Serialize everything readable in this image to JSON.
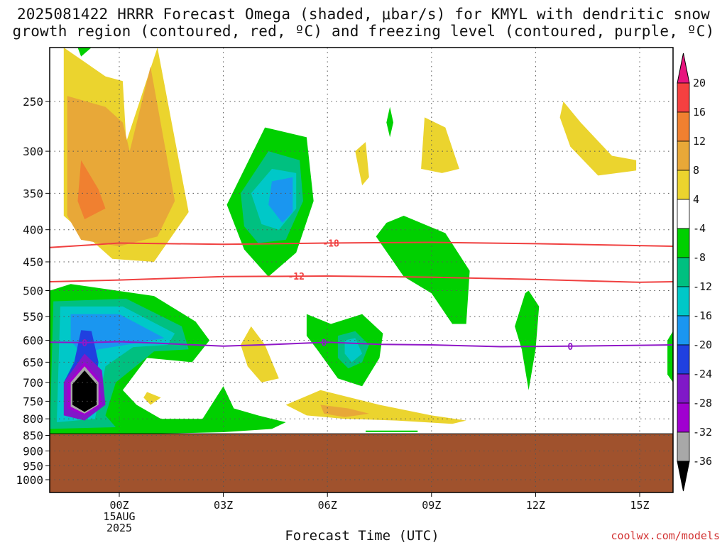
{
  "title_line1": "2025081422 HRRR Forecast Omega (shaded, μbar/s) for KMYL with dendritic snow",
  "title_line2": "growth region (contoured, red, ºC) and freezing level (contoured, purple, ºC)",
  "xlabel": "Forecast Time (UTC)",
  "credit": "coolwx.com/models",
  "chart_data": {
    "type": "heatmap",
    "title": "2025081422 HRRR Forecast Omega (shaded, μbar/s) for KMYL with dendritic snow growth region (contoured, red, ºC) and freezing level (contoured, purple, ºC)",
    "xlabel": "Forecast Time (UTC)",
    "ylabel": "",
    "x_ticks": [
      {
        "hour": 0,
        "label": "00Z",
        "date": "15AUG",
        "year": "2025"
      },
      {
        "hour": 3,
        "label": "03Z"
      },
      {
        "hour": 6,
        "label": "06Z"
      },
      {
        "hour": 9,
        "label": "09Z"
      },
      {
        "hour": 12,
        "label": "12Z"
      },
      {
        "hour": 15,
        "label": "15Z"
      }
    ],
    "xlim": [
      -2,
      16
    ],
    "y_ticks": [
      250,
      300,
      350,
      400,
      450,
      500,
      550,
      600,
      650,
      700,
      750,
      800,
      850,
      900,
      950,
      1000
    ],
    "ylim": [
      1000,
      200
    ],
    "ground_pressure": 845,
    "ground_color": "#a0522d",
    "grid": true,
    "colorbar": {
      "levels": [
        20,
        16,
        12,
        8,
        4,
        -4,
        -8,
        -12,
        -16,
        -20,
        -24,
        -28,
        -32,
        -36
      ],
      "colors": [
        "#e8147e",
        "#f54040",
        "#f08030",
        "#e8a838",
        "#ebd42e",
        "#ffffff",
        "#00d000",
        "#00c080",
        "#00c8c8",
        "#1a96f0",
        "#2040e0",
        "#8018c8",
        "#a000d0",
        "#a8a8a8",
        "#000000"
      ]
    },
    "contours": [
      {
        "label": "-18",
        "color": "#f04040",
        "points": [
          [
            -2,
            427
          ],
          [
            0,
            420
          ],
          [
            3,
            422
          ],
          [
            6,
            420
          ],
          [
            9,
            419
          ],
          [
            12,
            421
          ],
          [
            15,
            424
          ],
          [
            16,
            425
          ]
        ],
        "label_hour": 6.1
      },
      {
        "label": "-12",
        "color": "#f04040",
        "points": [
          [
            -2,
            484
          ],
          [
            0,
            481
          ],
          [
            3,
            475
          ],
          [
            6,
            474
          ],
          [
            9,
            476
          ],
          [
            12,
            480
          ],
          [
            15,
            485
          ],
          [
            16,
            484
          ]
        ],
        "label_hour": 5.1
      },
      {
        "label": "0",
        "color": "#9018c8",
        "points": [
          [
            -2,
            604
          ],
          [
            -1,
            605
          ],
          [
            0,
            603
          ],
          [
            1,
            606
          ],
          [
            3,
            613
          ],
          [
            4.5,
            609
          ],
          [
            6,
            604
          ],
          [
            7.5,
            609
          ],
          [
            9,
            610
          ],
          [
            11,
            614
          ],
          [
            13,
            613
          ],
          [
            15,
            611
          ],
          [
            16,
            610
          ]
        ],
        "label_hour": 13,
        "extra_label_hours": [
          -1,
          5.9
        ]
      }
    ],
    "omega_regions": [
      {
        "level": "4 to 8",
        "color": "#ebd42e",
        "points": [
          [
            -1.6,
            205
          ],
          [
            -0.4,
            228
          ],
          [
            0.1,
            232
          ],
          [
            0.2,
            290
          ],
          [
            1.1,
            185
          ],
          [
            2.0,
            375
          ],
          [
            1.0,
            450
          ],
          [
            -0.2,
            445
          ],
          [
            -1.6,
            380
          ]
        ]
      },
      {
        "level": "8 to 12",
        "color": "#e8a838",
        "points": [
          [
            -1.5,
            245
          ],
          [
            -0.4,
            255
          ],
          [
            0.1,
            270
          ],
          [
            0.3,
            300
          ],
          [
            0.9,
            220
          ],
          [
            1.6,
            360
          ],
          [
            1.1,
            410
          ],
          [
            0.0,
            425
          ],
          [
            -1.1,
            415
          ],
          [
            -1.5,
            380
          ]
        ]
      },
      {
        "level": "12 to 16",
        "color": "#f08030",
        "points": [
          [
            -1.1,
            310
          ],
          [
            -0.6,
            345
          ],
          [
            -0.4,
            370
          ],
          [
            -1.0,
            385
          ],
          [
            -1.2,
            360
          ]
        ]
      },
      {
        "level": "-4 to -8",
        "color": "#00d000",
        "points": [
          [
            3.1,
            365
          ],
          [
            4.2,
            275
          ],
          [
            5.4,
            285
          ],
          [
            5.6,
            360
          ],
          [
            5.1,
            435
          ],
          [
            4.3,
            475
          ],
          [
            3.6,
            430
          ]
        ]
      },
      {
        "level": "-8 to -12",
        "color": "#00c080",
        "points": [
          [
            3.5,
            350
          ],
          [
            4.3,
            300
          ],
          [
            5.2,
            310
          ],
          [
            5.3,
            360
          ],
          [
            4.8,
            415
          ],
          [
            4.0,
            420
          ],
          [
            3.6,
            395
          ]
        ]
      },
      {
        "level": "-12 to -16",
        "color": "#00c8c8",
        "points": [
          [
            3.8,
            350
          ],
          [
            4.4,
            320
          ],
          [
            5.1,
            325
          ],
          [
            5.1,
            370
          ],
          [
            4.6,
            400
          ],
          [
            4.1,
            392
          ]
        ]
      },
      {
        "level": "-16 to -20",
        "color": "#1a96f0",
        "points": [
          [
            4.4,
            335
          ],
          [
            5.0,
            330
          ],
          [
            5.0,
            375
          ],
          [
            4.7,
            390
          ],
          [
            4.3,
            365
          ]
        ]
      },
      {
        "level": "-4 to -8",
        "color": "#00d000",
        "points": [
          [
            -2,
            500
          ],
          [
            -1.4,
            488
          ],
          [
            1.0,
            510
          ],
          [
            2.2,
            560
          ],
          [
            2.6,
            600
          ],
          [
            2.1,
            650
          ],
          [
            0.8,
            640
          ],
          [
            0.1,
            720
          ],
          [
            0.5,
            760
          ],
          [
            1.2,
            800
          ],
          [
            2.4,
            800
          ],
          [
            3.0,
            710
          ],
          [
            3.3,
            770
          ],
          [
            4.0,
            790
          ],
          [
            4.8,
            810
          ],
          [
            4.4,
            830
          ],
          [
            3.0,
            840
          ],
          [
            1.0,
            845
          ],
          [
            -2,
            845
          ]
        ]
      },
      {
        "level": "-8 to -12",
        "color": "#00c080",
        "points": [
          [
            -1.9,
            520
          ],
          [
            0.2,
            515
          ],
          [
            1.8,
            570
          ],
          [
            2.0,
            620
          ],
          [
            1.0,
            625
          ],
          [
            -0.1,
            700
          ],
          [
            -0.4,
            790
          ],
          [
            -0.1,
            825
          ],
          [
            -2,
            830
          ]
        ]
      },
      {
        "level": "-12 to -16",
        "color": "#00c8c8",
        "points": [
          [
            -1.7,
            530
          ],
          [
            0.1,
            530
          ],
          [
            1.6,
            585
          ],
          [
            1.4,
            610
          ],
          [
            0.4,
            615
          ],
          [
            -0.4,
            660
          ],
          [
            -0.7,
            800
          ],
          [
            -1.8,
            810
          ]
        ]
      },
      {
        "level": "-16 to -20",
        "color": "#1a96f0",
        "points": [
          [
            -1.4,
            545
          ],
          [
            0.0,
            545
          ],
          [
            1.3,
            595
          ],
          [
            0.6,
            605
          ],
          [
            -0.6,
            620
          ],
          [
            -1.0,
            640
          ],
          [
            -1.4,
            600
          ]
        ]
      },
      {
        "level": "-20 to -24",
        "color": "#2040e0",
        "points": [
          [
            -1.1,
            578
          ],
          [
            -0.8,
            580
          ],
          [
            -0.6,
            650
          ],
          [
            -0.7,
            700
          ],
          [
            -1.6,
            700
          ],
          [
            -1.3,
            650
          ]
        ]
      },
      {
        "level": "-24 to -28",
        "color": "#8018c8",
        "points": [
          [
            -1.0,
            630
          ],
          [
            -0.5,
            670
          ],
          [
            -0.4,
            760
          ],
          [
            -1.0,
            805
          ],
          [
            -1.6,
            790
          ],
          [
            -1.6,
            700
          ]
        ]
      },
      {
        "level": "-28 to -32",
        "color": "#a000d0",
        "points": [
          [
            -1.0,
            650
          ],
          [
            -0.6,
            690
          ],
          [
            -0.5,
            760
          ],
          [
            -1.0,
            790
          ],
          [
            -1.5,
            770
          ],
          [
            -1.5,
            700
          ]
        ]
      },
      {
        "level": "-32 to -36",
        "color": "#a8a8a8",
        "points": [
          [
            -1.0,
            660
          ],
          [
            -0.6,
            700
          ],
          [
            -0.6,
            760
          ],
          [
            -1.0,
            785
          ],
          [
            -1.4,
            765
          ],
          [
            -1.4,
            700
          ]
        ]
      },
      {
        "level": "< -36",
        "color": "#000000",
        "points": [
          [
            -1.0,
            670
          ],
          [
            -0.65,
            705
          ],
          [
            -0.65,
            760
          ],
          [
            -1.0,
            780
          ],
          [
            -1.35,
            760
          ],
          [
            -1.35,
            705
          ]
        ]
      },
      {
        "level": "4 to 8",
        "color": "#ebd42e",
        "points": [
          [
            3.5,
            610
          ],
          [
            3.8,
            570
          ],
          [
            4.2,
            610
          ],
          [
            4.6,
            690
          ],
          [
            4.1,
            700
          ],
          [
            3.7,
            660
          ]
        ]
      },
      {
        "level": "4 to 8",
        "color": "#ebd42e",
        "points": [
          [
            4.8,
            760
          ],
          [
            5.8,
            720
          ],
          [
            7.5,
            760
          ],
          [
            9.0,
            790
          ],
          [
            10.0,
            805
          ],
          [
            9.6,
            815
          ],
          [
            8.0,
            805
          ],
          [
            6.5,
            800
          ],
          [
            5.4,
            790
          ]
        ]
      },
      {
        "level": "8 to 12",
        "color": "#e8a838",
        "points": [
          [
            5.8,
            760
          ],
          [
            6.6,
            770
          ],
          [
            7.2,
            785
          ],
          [
            6.5,
            795
          ],
          [
            5.9,
            785
          ]
        ]
      },
      {
        "level": "-4 to -8",
        "color": "#00d000",
        "points": [
          [
            5.4,
            545
          ],
          [
            6.1,
            565
          ],
          [
            7.0,
            545
          ],
          [
            7.6,
            585
          ],
          [
            7.5,
            640
          ],
          [
            7.0,
            710
          ],
          [
            6.3,
            690
          ],
          [
            5.7,
            620
          ],
          [
            5.4,
            590
          ]
        ]
      },
      {
        "level": "-8 to -12",
        "color": "#00c080",
        "points": [
          [
            6.3,
            590
          ],
          [
            6.8,
            580
          ],
          [
            7.2,
            610
          ],
          [
            7.0,
            650
          ],
          [
            6.6,
            665
          ],
          [
            6.3,
            640
          ]
        ]
      },
      {
        "level": "-12 to -16",
        "color": "#00c8c8",
        "points": [
          [
            6.5,
            600
          ],
          [
            6.8,
            595
          ],
          [
            7.0,
            630
          ],
          [
            6.7,
            650
          ],
          [
            6.5,
            630
          ]
        ]
      },
      {
        "level": "-4 to -8",
        "color": "#00d000",
        "points": [
          [
            7.7,
            390
          ],
          [
            8.2,
            380
          ],
          [
            9.4,
            405
          ],
          [
            10.1,
            465
          ],
          [
            10.0,
            565
          ],
          [
            9.6,
            565
          ],
          [
            9.0,
            505
          ],
          [
            8.2,
            475
          ],
          [
            7.4,
            410
          ]
        ]
      },
      {
        "level": "4 to 8",
        "color": "#ebd42e",
        "points": [
          [
            8.8,
            265
          ],
          [
            9.4,
            275
          ],
          [
            9.8,
            320
          ],
          [
            9.3,
            325
          ],
          [
            8.7,
            320
          ]
        ]
      },
      {
        "level": "4 to 8",
        "color": "#ebd42e",
        "points": [
          [
            6.8,
            300
          ],
          [
            7.1,
            290
          ],
          [
            7.2,
            330
          ],
          [
            7.0,
            340
          ],
          [
            6.9,
            320
          ]
        ]
      },
      {
        "level": "-4 to -8",
        "color": "#00d000",
        "points": [
          [
            7.8,
            255
          ],
          [
            7.9,
            270
          ],
          [
            7.8,
            285
          ],
          [
            7.7,
            270
          ]
        ]
      },
      {
        "level": "4 to 8",
        "color": "#ebd42e",
        "points": [
          [
            12.8,
            250
          ],
          [
            13.3,
            270
          ],
          [
            14.2,
            305
          ],
          [
            14.9,
            310
          ],
          [
            14.9,
            322
          ],
          [
            13.8,
            328
          ],
          [
            13.0,
            295
          ],
          [
            12.7,
            265
          ]
        ]
      },
      {
        "level": "-4 to -8",
        "color": "#00d000",
        "points": [
          [
            11.7,
            505
          ],
          [
            11.8,
            500
          ],
          [
            12.1,
            530
          ],
          [
            12.0,
            620
          ],
          [
            11.8,
            720
          ],
          [
            11.6,
            620
          ],
          [
            11.4,
            570
          ]
        ]
      },
      {
        "level": "-4 to -8",
        "color": "#00d000",
        "points": [
          [
            15.8,
            600
          ],
          [
            16.0,
            580
          ],
          [
            16.0,
            700
          ],
          [
            15.8,
            680
          ]
        ]
      },
      {
        "level": "-4 to -8",
        "color": "#00d000",
        "points": [
          [
            7.1,
            835
          ],
          [
            8.6,
            835
          ],
          [
            8.6,
            840
          ],
          [
            7.1,
            840
          ]
        ]
      },
      {
        "level": "-4 to -8",
        "color": "#00d000",
        "points": [
          [
            -1.2,
            200
          ],
          [
            -0.8,
            205
          ],
          [
            -1.1,
            212
          ]
        ]
      },
      {
        "level": "4 to 8",
        "color": "#ebd42e",
        "points": [
          [
            0.8,
            725
          ],
          [
            1.2,
            740
          ],
          [
            0.9,
            760
          ],
          [
            0.7,
            740
          ]
        ]
      }
    ]
  }
}
